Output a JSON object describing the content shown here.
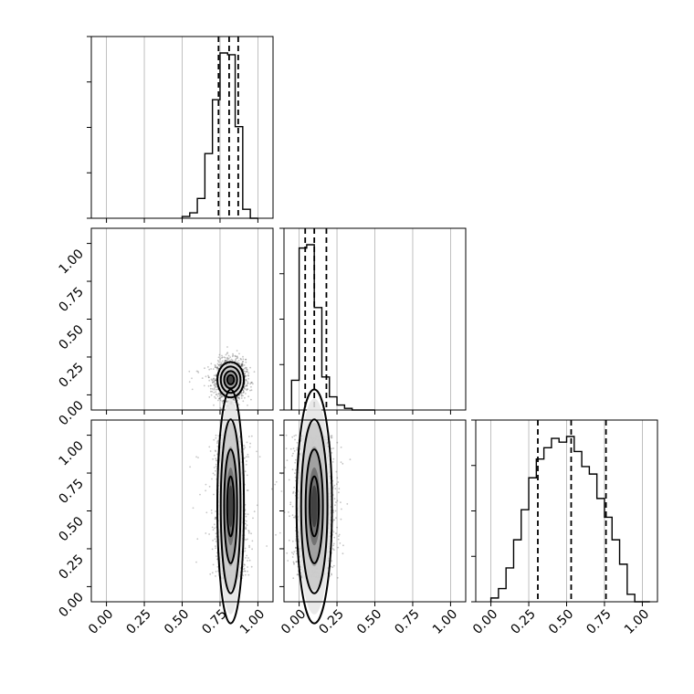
{
  "chart_data": {
    "type": "corner",
    "title": "",
    "tick_labels": [
      "0.00",
      "0.25",
      "0.50",
      "0.75",
      "1.00"
    ],
    "axis_range": [
      -0.1,
      1.1
    ],
    "grid": true,
    "parameters": [
      {
        "bins": [
          0.5,
          0.55,
          0.6,
          0.65,
          0.7,
          0.75,
          0.8,
          0.85,
          0.9,
          0.95
        ],
        "hist": [
          0.01,
          0.03,
          0.11,
          0.36,
          0.66,
          0.92,
          0.91,
          0.51,
          0.05,
          0.0
        ],
        "quantiles": [
          0.74,
          0.81,
          0.87
        ],
        "center": 0.82,
        "spread": 0.045
      },
      {
        "bins": [
          -0.05,
          0.0,
          0.05,
          0.1,
          0.15,
          0.2,
          0.25,
          0.3,
          0.35,
          0.4,
          0.45
        ],
        "hist": [
          0.18,
          0.98,
          1.0,
          0.62,
          0.2,
          0.08,
          0.03,
          0.01,
          0.0,
          0.0,
          0.0
        ],
        "quantiles": [
          0.04,
          0.1,
          0.18
        ],
        "center": 0.1,
        "spread": 0.06
      },
      {
        "bins": [
          0.0,
          0.05,
          0.1,
          0.15,
          0.2,
          0.25,
          0.3,
          0.35,
          0.4,
          0.45,
          0.5,
          0.55,
          0.6,
          0.65,
          0.7,
          0.75,
          0.8,
          0.85,
          0.9,
          0.95,
          1.0
        ],
        "hist": [
          0.02,
          0.07,
          0.18,
          0.33,
          0.49,
          0.66,
          0.76,
          0.82,
          0.87,
          0.85,
          0.88,
          0.8,
          0.72,
          0.68,
          0.55,
          0.45,
          0.33,
          0.2,
          0.04,
          0.0
        ],
        "quantiles": [
          0.31,
          0.53,
          0.76
        ],
        "center": 0.53,
        "spread": 0.24
      }
    ]
  }
}
